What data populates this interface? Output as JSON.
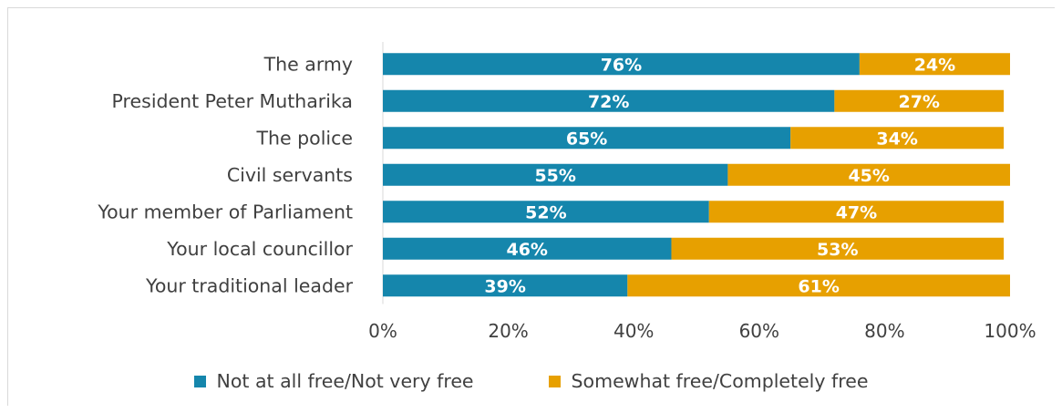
{
  "chart_data": {
    "type": "bar",
    "orientation": "horizontal",
    "stacked": true,
    "categories": [
      "The army",
      "President Peter Mutharika",
      "The police",
      "Civil servants",
      "Your member of Parliament",
      "Your local councillor",
      "Your traditional leader"
    ],
    "series": [
      {
        "name": "Not at all free/Not very free",
        "color": "#1586ac",
        "values": [
          76,
          72,
          65,
          55,
          52,
          46,
          39
        ],
        "labels": [
          "76%",
          "72%",
          "65%",
          "55%",
          "52%",
          "46%",
          "39%"
        ]
      },
      {
        "name": "Somewhat free/Completely free",
        "color": "#e7a000",
        "values": [
          24,
          27,
          34,
          45,
          47,
          53,
          61
        ],
        "labels": [
          "24%",
          "27%",
          "34%",
          "45%",
          "47%",
          "53%",
          "61%"
        ]
      }
    ],
    "xlim": [
      0,
      100
    ],
    "xticks": [
      "0%",
      "20%",
      "40%",
      "60%",
      "80%",
      "100%"
    ],
    "grid": false,
    "legend_position": "bottom"
  }
}
